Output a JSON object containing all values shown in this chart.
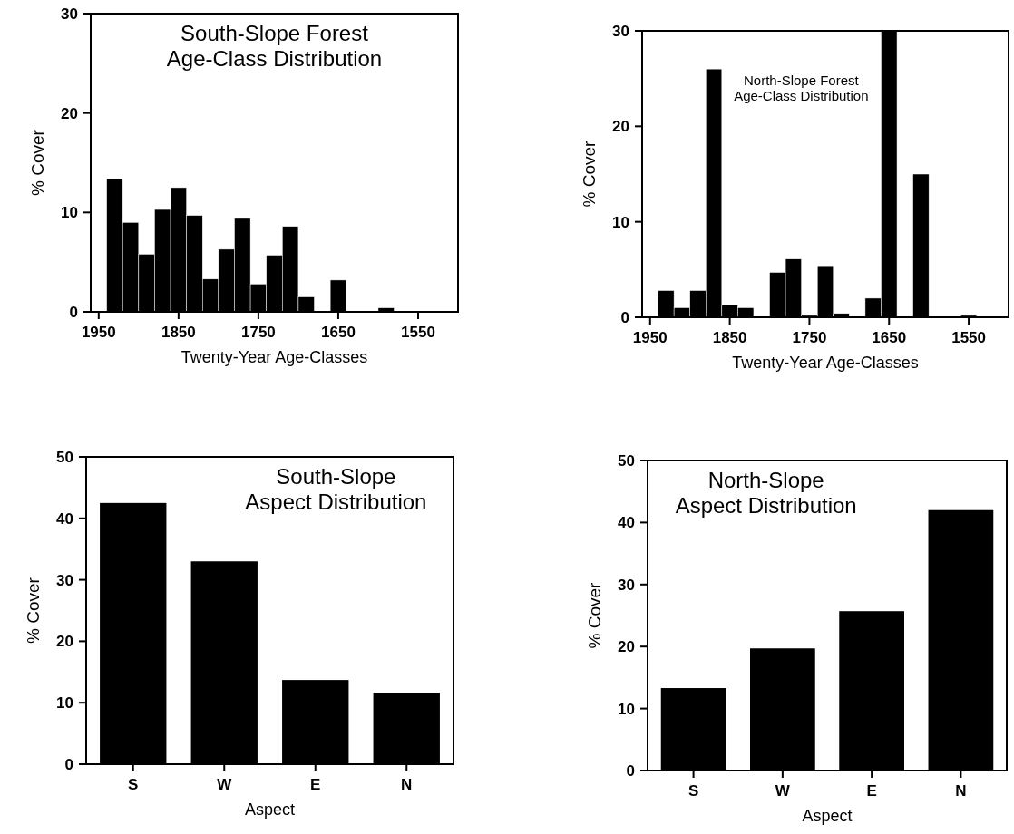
{
  "chart_data": [
    {
      "type": "histogram",
      "title": "South-Slope Forest\nAge-Class Distribution",
      "xlabel": "Twenty-Year Age-Classes",
      "ylabel": "% Cover",
      "bins": [
        1960,
        1940,
        1920,
        1900,
        1880,
        1860,
        1840,
        1820,
        1800,
        1780,
        1760,
        1740,
        1720,
        1700,
        1680,
        1660,
        1640,
        1620,
        1600,
        1580,
        1560,
        1540,
        1520,
        1500
      ],
      "values": [
        0,
        13.4,
        9.0,
        5.8,
        10.3,
        12.5,
        9.7,
        3.3,
        6.3,
        9.4,
        2.8,
        5.7,
        8.6,
        1.5,
        0,
        3.2,
        0,
        0,
        0.4,
        0,
        0,
        0,
        0
      ],
      "color": "#000000",
      "xlim": [
        1960,
        1500
      ],
      "xticks": [
        1950,
        1850,
        1750,
        1650,
        1550
      ],
      "ylim": [
        0,
        30
      ],
      "yticks": [
        0,
        10,
        20,
        30
      ],
      "grid": false
    },
    {
      "type": "histogram",
      "title": "North-Slope Forest\nAge-Class Distribution",
      "xlabel": "Twenty-Year Age-Classes",
      "ylabel": "% Cover",
      "bins": [
        1960,
        1940,
        1920,
        1900,
        1880,
        1860,
        1840,
        1820,
        1800,
        1780,
        1760,
        1740,
        1720,
        1700,
        1680,
        1660,
        1640,
        1620,
        1600,
        1580,
        1560,
        1540,
        1520,
        1500
      ],
      "values": [
        0,
        2.8,
        1.0,
        2.8,
        26,
        1.3,
        1.0,
        0,
        4.7,
        6.1,
        0.2,
        5.4,
        0.4,
        0,
        2.0,
        30,
        0,
        15,
        0,
        0,
        0.2,
        0,
        0
      ],
      "color": "#000000",
      "xlim": [
        1960,
        1500
      ],
      "xticks": [
        1950,
        1850,
        1750,
        1650,
        1550
      ],
      "ylim": [
        0,
        30
      ],
      "yticks": [
        0,
        10,
        20,
        30
      ],
      "grid": false
    },
    {
      "type": "bar",
      "title": "South-Slope\nAspect Distribution",
      "xlabel": "Aspect",
      "ylabel": "% Cover",
      "categories": [
        "S",
        "W",
        "E",
        "N"
      ],
      "values": [
        42.5,
        33,
        13.7,
        11.6
      ],
      "color": "#000000",
      "ylim": [
        0,
        50
      ],
      "yticks": [
        0,
        10,
        20,
        30,
        40,
        50
      ],
      "grid": false
    },
    {
      "type": "bar",
      "title": "North-Slope\nAspect Distribution",
      "xlabel": "Aspect",
      "ylabel": "% Cover",
      "categories": [
        "S",
        "W",
        "E",
        "N"
      ],
      "values": [
        13.3,
        19.7,
        25.7,
        42
      ],
      "color": "#000000",
      "ylim": [
        0,
        50
      ],
      "yticks": [
        0,
        10,
        20,
        30,
        40,
        50
      ],
      "grid": false
    }
  ]
}
